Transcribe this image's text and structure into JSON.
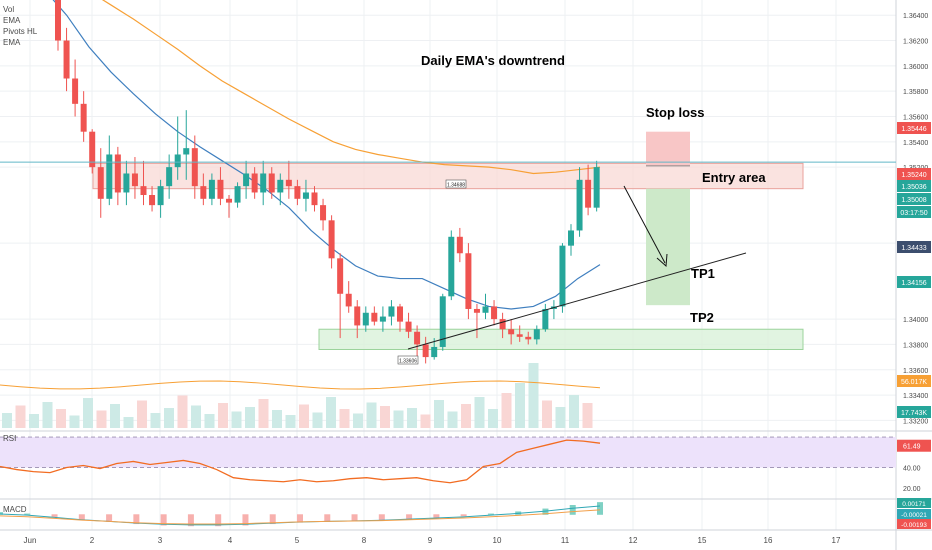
{
  "legend": [
    "Vol",
    "EMA",
    "Pivots HL",
    "EMA"
  ],
  "annotations": {
    "title": "Daily EMA's downtrend",
    "stop_loss": "Stop loss",
    "entry_area": "Entry area",
    "tp1": "TP1",
    "tp2": "TP2"
  },
  "pivot_labels": {
    "high": "1.34688",
    "low": "1.33606"
  },
  "panes": {
    "rsi": "RSI",
    "macd": "MACD"
  },
  "colors": {
    "bull": "#26a69a",
    "bear": "#ef5350",
    "ema_fast": "#3f7fbf",
    "ema_slow": "#f7a035",
    "zone_fill": "#f8d9d6",
    "zone_stroke": "#e9a29b",
    "tp_fill": "#d9f1d9",
    "tp_stroke": "#9cd39c",
    "rsi_line": "#f26c22",
    "rsi_band": "#ede2fb",
    "macd_line": "#2fa7b5",
    "signal_line": "#f2a04b",
    "grid": "#eef0f3",
    "crosshair": "#62b7c6"
  },
  "chart_data": {
    "type": "candlestick",
    "x_tick_labels": [
      "Jun",
      "2",
      "3",
      "4",
      "5",
      "8",
      "9",
      "10",
      "11",
      "12",
      "15",
      "16",
      "17"
    ],
    "y_tick_labels": [
      "1.36400",
      "1.36200",
      "1.36000",
      "1.35800",
      "1.35600",
      "1.35400",
      "1.35200",
      "1.34600",
      "1.34000",
      "1.33800",
      "1.33600",
      "1.33400",
      "1.33200"
    ],
    "price_labels": [
      {
        "text": "1.35446",
        "value": 1.35446,
        "color": "#ef5350"
      },
      {
        "text": "1.35240",
        "value": 1.3524,
        "color": "#ef5350"
      },
      {
        "text": "1.35036",
        "value": 1.35036,
        "color": "#26a69a"
      },
      {
        "text": "1.35008",
        "value": 1.35008,
        "color": "#26a69a"
      },
      {
        "text": "03:17:50",
        "value": 1.3488,
        "color": "#26a69a"
      },
      {
        "text": "1.34433",
        "value": 1.34433,
        "color": "#3c4e6e"
      },
      {
        "text": "1.34156",
        "value": 1.34156,
        "color": "#26a69a"
      },
      {
        "text": "56.017K",
        "value": null,
        "color": "#f7a035"
      },
      {
        "text": "17.743K",
        "value": null,
        "color": "#26a69a"
      }
    ],
    "candles_ohlc": [
      [
        1.3652,
        1.3668,
        1.3612,
        1.362
      ],
      [
        1.362,
        1.363,
        1.358,
        1.359
      ],
      [
        1.359,
        1.3605,
        1.356,
        1.357
      ],
      [
        1.357,
        1.358,
        1.354,
        1.3548
      ],
      [
        1.3548,
        1.355,
        1.3515,
        1.352
      ],
      [
        1.352,
        1.3535,
        1.348,
        1.3495
      ],
      [
        1.3495,
        1.3545,
        1.349,
        1.353
      ],
      [
        1.353,
        1.3536,
        1.349,
        1.35
      ],
      [
        1.35,
        1.3525,
        1.349,
        1.3515
      ],
      [
        1.3515,
        1.3528,
        1.3495,
        1.3505
      ],
      [
        1.3505,
        1.3525,
        1.349,
        1.3498
      ],
      [
        1.3498,
        1.3505,
        1.3485,
        1.349
      ],
      [
        1.349,
        1.351,
        1.348,
        1.3505
      ],
      [
        1.3505,
        1.353,
        1.3495,
        1.352
      ],
      [
        1.352,
        1.356,
        1.351,
        1.353
      ],
      [
        1.353,
        1.3565,
        1.351,
        1.3535
      ],
      [
        1.3535,
        1.3545,
        1.3495,
        1.3505
      ],
      [
        1.3505,
        1.3515,
        1.349,
        1.3495
      ],
      [
        1.3495,
        1.3515,
        1.349,
        1.351
      ],
      [
        1.351,
        1.352,
        1.349,
        1.3495
      ],
      [
        1.3495,
        1.3498,
        1.348,
        1.3492
      ],
      [
        1.3492,
        1.3508,
        1.3488,
        1.3505
      ],
      [
        1.3505,
        1.3525,
        1.3495,
        1.3515
      ],
      [
        1.3515,
        1.352,
        1.3495,
        1.35
      ],
      [
        1.35,
        1.3525,
        1.349,
        1.3515
      ],
      [
        1.3515,
        1.352,
        1.3495,
        1.35
      ],
      [
        1.35,
        1.3515,
        1.349,
        1.351
      ],
      [
        1.351,
        1.3525,
        1.3495,
        1.3505
      ],
      [
        1.3505,
        1.351,
        1.349,
        1.3495
      ],
      [
        1.3495,
        1.351,
        1.3485,
        1.35
      ],
      [
        1.35,
        1.3505,
        1.3485,
        1.349
      ],
      [
        1.349,
        1.3495,
        1.347,
        1.3478
      ],
      [
        1.3478,
        1.3482,
        1.344,
        1.3448
      ],
      [
        1.3448,
        1.3452,
        1.3385,
        1.342
      ],
      [
        1.342,
        1.343,
        1.3405,
        1.341
      ],
      [
        1.341,
        1.3415,
        1.3385,
        1.3395
      ],
      [
        1.3395,
        1.341,
        1.339,
        1.3405
      ],
      [
        1.3405,
        1.341,
        1.3395,
        1.3398
      ],
      [
        1.3398,
        1.341,
        1.339,
        1.3402
      ],
      [
        1.3402,
        1.3415,
        1.3395,
        1.341
      ],
      [
        1.341,
        1.3412,
        1.339,
        1.3398
      ],
      [
        1.3398,
        1.3405,
        1.3385,
        1.339
      ],
      [
        1.339,
        1.3395,
        1.3365,
        1.338
      ],
      [
        1.338,
        1.3386,
        1.3365,
        1.337
      ],
      [
        1.337,
        1.3385,
        1.3368,
        1.3378
      ],
      [
        1.3378,
        1.342,
        1.3375,
        1.3418
      ],
      [
        1.3418,
        1.347,
        1.3415,
        1.3465
      ],
      [
        1.3465,
        1.3472,
        1.3445,
        1.3452
      ],
      [
        1.3452,
        1.346,
        1.34,
        1.3408
      ],
      [
        1.3408,
        1.3412,
        1.3385,
        1.3405
      ],
      [
        1.3405,
        1.342,
        1.34,
        1.341
      ],
      [
        1.341,
        1.3415,
        1.3395,
        1.34
      ],
      [
        1.34,
        1.3405,
        1.3385,
        1.3392
      ],
      [
        1.3392,
        1.34,
        1.338,
        1.3388
      ],
      [
        1.3388,
        1.3395,
        1.3382,
        1.3386
      ],
      [
        1.3386,
        1.339,
        1.338,
        1.3384
      ],
      [
        1.3384,
        1.3395,
        1.338,
        1.3392
      ],
      [
        1.3392,
        1.3412,
        1.339,
        1.3408
      ],
      [
        1.3408,
        1.3415,
        1.34,
        1.341
      ],
      [
        1.341,
        1.346,
        1.3405,
        1.3458
      ],
      [
        1.3458,
        1.3475,
        1.345,
        1.347
      ],
      [
        1.347,
        1.352,
        1.3465,
        1.351
      ],
      [
        1.351,
        1.3522,
        1.3482,
        1.3488
      ],
      [
        1.3488,
        1.3525,
        1.3485,
        1.352
      ]
    ],
    "ema_fast": [
      1.37,
      1.368,
      1.366,
      1.364,
      1.3615,
      1.3595,
      1.3578,
      1.3562,
      1.3548,
      1.3536,
      1.3525,
      1.3514,
      1.3502,
      1.3488,
      1.347,
      1.3455,
      1.3442,
      1.3434,
      1.3432,
      1.3432,
      1.3424,
      1.3416,
      1.341,
      1.3408,
      1.341,
      1.3418,
      1.3432,
      1.3443
    ],
    "ema_slow": [
      1.37,
      1.369,
      1.368,
      1.367,
      1.3659,
      1.3648,
      1.3637,
      1.3625,
      1.3613,
      1.36,
      1.3588,
      1.3578,
      1.3568,
      1.3558,
      1.3549,
      1.354,
      1.3534,
      1.353,
      1.3527,
      1.3524,
      1.3522,
      1.3521,
      1.352,
      1.3518,
      1.3515,
      1.3516,
      1.3518,
      1.352
    ],
    "zones": {
      "entry_area": [
        1.3503,
        1.3523
      ],
      "tp2": [
        1.3376,
        1.3392
      ],
      "stop_loss": [
        1.3521,
        1.3548
      ],
      "take_profit": [
        1.3411,
        1.3503
      ]
    },
    "rsi_levels": [
      70,
      40
    ],
    "rsi_tick_labels": [
      "61.49",
      "40.00",
      "20.00"
    ],
    "rsi_values": [
      41,
      38,
      36,
      35,
      40,
      42,
      39,
      44,
      46,
      43,
      45,
      47,
      44,
      38,
      30,
      28,
      27,
      26,
      28,
      26,
      27,
      29,
      30,
      28,
      29,
      30,
      27,
      25,
      28,
      41,
      44,
      55,
      59,
      63,
      67,
      66,
      64
    ],
    "macd_tick_labels": [
      "0.00171",
      "-0.00021",
      "-0.00193"
    ],
    "macd_values": [
      0.0003,
      0.0001,
      -0.0003,
      -0.0007,
      -0.001,
      -0.0013,
      -0.0015,
      -0.0016,
      -0.0016,
      -0.0015,
      -0.0013,
      -0.0011,
      -0.001,
      -0.0009,
      -0.0008,
      -0.0006,
      -0.0004,
      -0.0002,
      0.0001,
      0.0004,
      0.0008,
      0.0013,
      0.0017
    ],
    "volume_values": [
      30,
      45,
      28,
      52,
      38,
      25,
      60,
      35,
      48,
      22,
      55,
      30,
      40,
      65,
      45,
      28,
      50,
      33,
      42,
      58,
      36,
      26,
      47,
      31,
      62,
      38,
      29,
      51,
      44,
      35,
      40,
      27,
      56,
      33,
      48,
      62,
      38,
      70,
      90,
      130,
      55,
      42,
      66,
      50
    ]
  }
}
